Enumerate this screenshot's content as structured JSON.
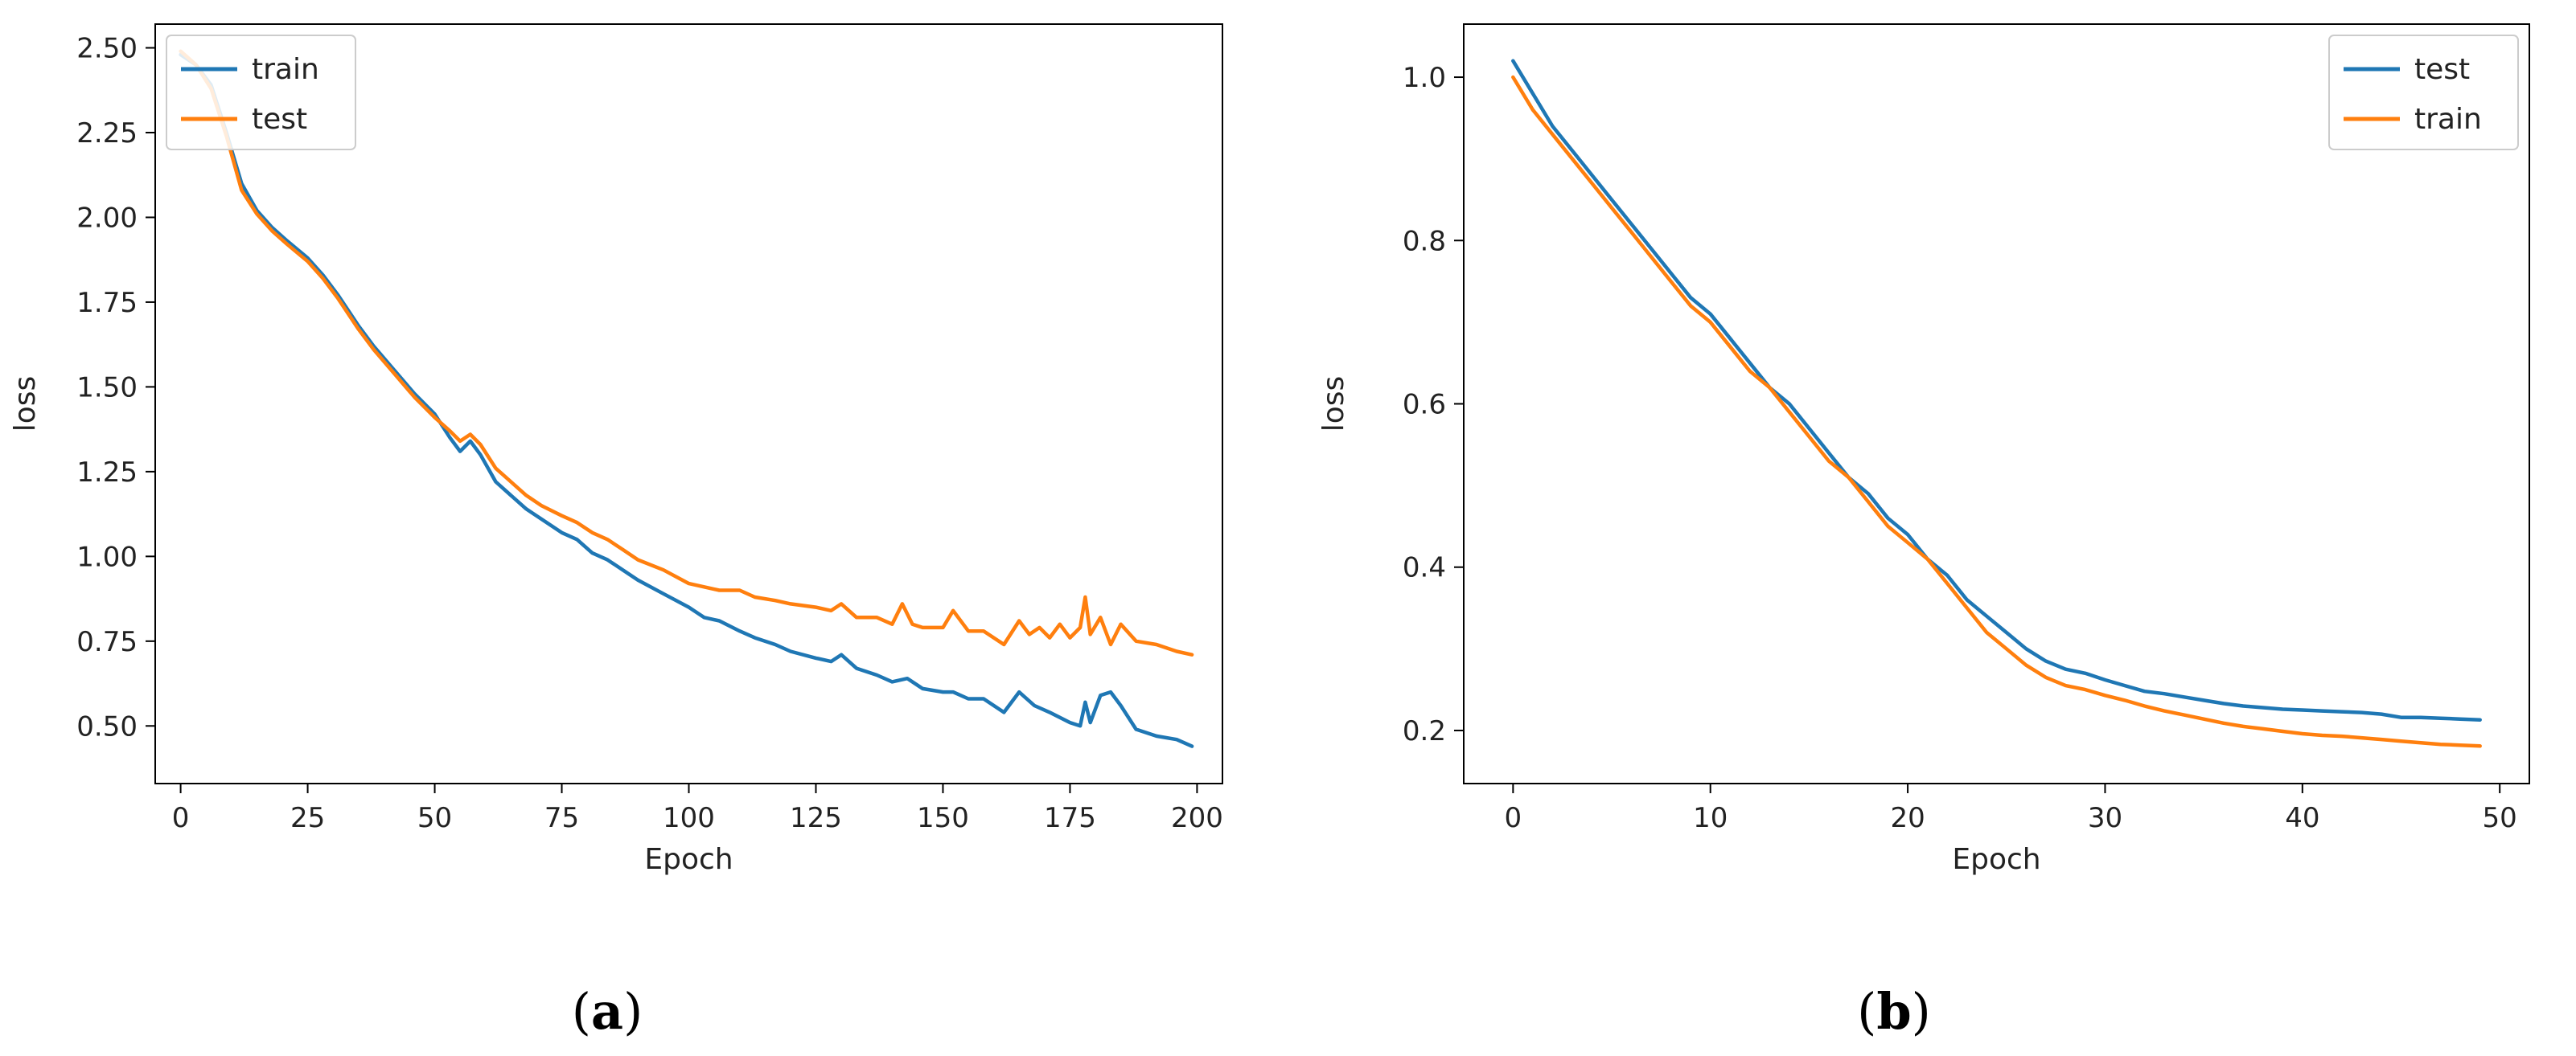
{
  "colors": {
    "blue": "#1f77b4",
    "orange": "#ff7f0e"
  },
  "panels": [
    {
      "caption_open": "(",
      "caption_letter": "a",
      "caption_close": ")"
    },
    {
      "caption_open": "(",
      "caption_letter": "b",
      "caption_close": ")"
    }
  ],
  "chart_data": [
    {
      "type": "line",
      "xlabel": "Epoch",
      "ylabel": "loss",
      "xlim": [
        -5,
        205
      ],
      "ylim": [
        0.33,
        2.57
      ],
      "xticks": [
        0,
        25,
        50,
        75,
        100,
        125,
        150,
        175,
        200
      ],
      "yticks": [
        0.5,
        0.75,
        1.0,
        1.25,
        1.5,
        1.75,
        2.0,
        2.25,
        2.5
      ],
      "ytick_labels": [
        "0.50",
        "0.75",
        "1.00",
        "1.25",
        "1.50",
        "1.75",
        "2.00",
        "2.25",
        "2.50"
      ],
      "grid": false,
      "legend": "top-left",
      "series": [
        {
          "name": "train",
          "color": "#1f77b4",
          "x": [
            0,
            3,
            6,
            9,
            12,
            15,
            18,
            21,
            25,
            28,
            31,
            35,
            38,
            42,
            46,
            50,
            53,
            55,
            57,
            59,
            62,
            65,
            68,
            71,
            75,
            78,
            81,
            84,
            87,
            90,
            95,
            100,
            103,
            106,
            110,
            113,
            117,
            120,
            125,
            128,
            130,
            133,
            137,
            140,
            143,
            146,
            150,
            152,
            155,
            158,
            162,
            165,
            168,
            171,
            175,
            177,
            178,
            179,
            181,
            183,
            185,
            188,
            192,
            196,
            199
          ],
          "y": [
            2.48,
            2.45,
            2.39,
            2.25,
            2.1,
            2.02,
            1.97,
            1.93,
            1.88,
            1.83,
            1.77,
            1.68,
            1.62,
            1.55,
            1.48,
            1.42,
            1.35,
            1.31,
            1.34,
            1.3,
            1.22,
            1.18,
            1.14,
            1.11,
            1.07,
            1.05,
            1.01,
            0.99,
            0.96,
            0.93,
            0.89,
            0.85,
            0.82,
            0.81,
            0.78,
            0.76,
            0.74,
            0.72,
            0.7,
            0.69,
            0.71,
            0.67,
            0.65,
            0.63,
            0.64,
            0.61,
            0.6,
            0.6,
            0.58,
            0.58,
            0.54,
            0.6,
            0.56,
            0.54,
            0.51,
            0.5,
            0.57,
            0.51,
            0.59,
            0.6,
            0.56,
            0.49,
            0.47,
            0.46,
            0.44
          ]
        },
        {
          "name": "test",
          "color": "#ff7f0e",
          "x": [
            0,
            3,
            6,
            9,
            12,
            15,
            18,
            21,
            25,
            28,
            31,
            35,
            38,
            42,
            46,
            50,
            53,
            55,
            57,
            59,
            62,
            65,
            68,
            71,
            75,
            78,
            81,
            84,
            87,
            90,
            95,
            100,
            103,
            106,
            110,
            113,
            117,
            120,
            125,
            128,
            130,
            133,
            137,
            140,
            142,
            144,
            146,
            150,
            152,
            155,
            158,
            162,
            165,
            167,
            169,
            171,
            173,
            175,
            177,
            178,
            179,
            181,
            183,
            185,
            188,
            192,
            196,
            199
          ],
          "y": [
            2.49,
            2.45,
            2.38,
            2.24,
            2.08,
            2.01,
            1.96,
            1.92,
            1.87,
            1.82,
            1.76,
            1.67,
            1.61,
            1.54,
            1.47,
            1.41,
            1.37,
            1.34,
            1.36,
            1.33,
            1.26,
            1.22,
            1.18,
            1.15,
            1.12,
            1.1,
            1.07,
            1.05,
            1.02,
            0.99,
            0.96,
            0.92,
            0.91,
            0.9,
            0.9,
            0.88,
            0.87,
            0.86,
            0.85,
            0.84,
            0.86,
            0.82,
            0.82,
            0.8,
            0.86,
            0.8,
            0.79,
            0.79,
            0.84,
            0.78,
            0.78,
            0.74,
            0.81,
            0.77,
            0.79,
            0.76,
            0.8,
            0.76,
            0.79,
            0.88,
            0.77,
            0.82,
            0.74,
            0.8,
            0.75,
            0.74,
            0.72,
            0.71
          ]
        }
      ]
    },
    {
      "type": "line",
      "xlabel": "Epoch",
      "ylabel": "loss",
      "xlim": [
        -2.5,
        51.5
      ],
      "ylim": [
        0.135,
        1.065
      ],
      "xticks": [
        0,
        10,
        20,
        30,
        40,
        50
      ],
      "yticks": [
        0.2,
        0.4,
        0.6,
        0.8,
        1.0
      ],
      "ytick_labels": [
        "0.2",
        "0.4",
        "0.6",
        "0.8",
        "1.0"
      ],
      "grid": false,
      "legend": "top-right",
      "series": [
        {
          "name": "test",
          "color": "#1f77b4",
          "x": [
            0,
            1,
            2,
            3,
            4,
            5,
            6,
            7,
            8,
            9,
            10,
            11,
            12,
            13,
            14,
            15,
            16,
            17,
            18,
            19,
            20,
            21,
            22,
            23,
            24,
            25,
            26,
            27,
            28,
            29,
            30,
            31,
            32,
            33,
            34,
            35,
            36,
            37,
            38,
            39,
            40,
            41,
            42,
            43,
            44,
            45,
            46,
            47,
            48,
            49
          ],
          "y": [
            1.02,
            0.98,
            0.94,
            0.91,
            0.88,
            0.85,
            0.82,
            0.79,
            0.76,
            0.73,
            0.71,
            0.68,
            0.65,
            0.62,
            0.6,
            0.57,
            0.54,
            0.51,
            0.49,
            0.46,
            0.44,
            0.41,
            0.39,
            0.36,
            0.34,
            0.32,
            0.3,
            0.285,
            0.275,
            0.27,
            0.262,
            0.255,
            0.248,
            0.245,
            0.241,
            0.237,
            0.233,
            0.23,
            0.228,
            0.226,
            0.225,
            0.224,
            0.223,
            0.222,
            0.22,
            0.216,
            0.216,
            0.215,
            0.214,
            0.213
          ]
        },
        {
          "name": "train",
          "color": "#ff7f0e",
          "x": [
            0,
            1,
            2,
            3,
            4,
            5,
            6,
            7,
            8,
            9,
            10,
            11,
            12,
            13,
            14,
            15,
            16,
            17,
            18,
            19,
            20,
            21,
            22,
            23,
            24,
            25,
            26,
            27,
            28,
            29,
            30,
            31,
            32,
            33,
            34,
            35,
            36,
            37,
            38,
            39,
            40,
            41,
            42,
            43,
            44,
            45,
            46,
            47,
            48,
            49
          ],
          "y": [
            1.0,
            0.96,
            0.93,
            0.9,
            0.87,
            0.84,
            0.81,
            0.78,
            0.75,
            0.72,
            0.7,
            0.67,
            0.64,
            0.62,
            0.59,
            0.56,
            0.53,
            0.51,
            0.48,
            0.45,
            0.43,
            0.41,
            0.38,
            0.35,
            0.32,
            0.3,
            0.28,
            0.265,
            0.255,
            0.25,
            0.243,
            0.237,
            0.23,
            0.224,
            0.219,
            0.214,
            0.209,
            0.205,
            0.202,
            0.199,
            0.196,
            0.194,
            0.193,
            0.191,
            0.189,
            0.187,
            0.185,
            0.183,
            0.182,
            0.181
          ]
        }
      ]
    }
  ]
}
